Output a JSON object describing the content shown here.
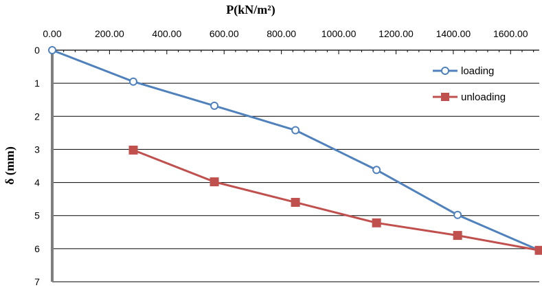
{
  "chart_data": {
    "type": "line",
    "xlabel": "P(kN/m²)",
    "ylabel": "δ (mm)",
    "xlim": [
      0,
      1700
    ],
    "ylim": [
      0,
      7
    ],
    "x_ticks": [
      "0.00",
      "200.00",
      "400.00",
      "600.00",
      "800.00",
      "1000.00",
      "1200.00",
      "1400.00",
      "1600.00"
    ],
    "y_ticks": [
      "0",
      "1",
      "2",
      "3",
      "4",
      "5",
      "6",
      "7"
    ],
    "x_axis_position": "top",
    "y_axis_inverted": true,
    "grid": "horizontal",
    "legend_position": "top-right",
    "series": [
      {
        "name": "loading",
        "color": "#4f81bd",
        "marker": "circle",
        "x": [
          0,
          283,
          566,
          849,
          1132,
          1415,
          1700
        ],
        "y": [
          0,
          0.95,
          1.68,
          2.42,
          3.62,
          4.98,
          6.05
        ]
      },
      {
        "name": "unloading",
        "color": "#c0504d",
        "marker": "square",
        "x": [
          283,
          566,
          849,
          1132,
          1415,
          1700
        ],
        "y": [
          3.02,
          3.98,
          4.6,
          5.22,
          5.6,
          6.05
        ]
      }
    ]
  }
}
